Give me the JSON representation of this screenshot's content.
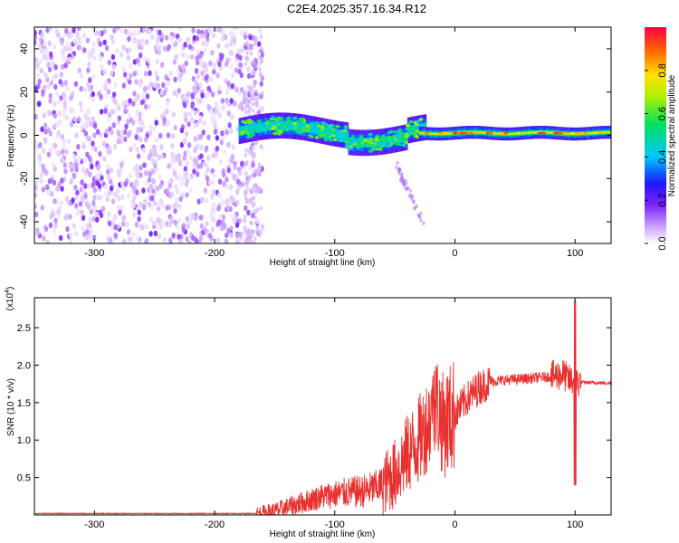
{
  "title": "C2E4.2025.357.16.34.R12",
  "chart_data": [
    {
      "type": "heatmap",
      "name": "spectrogram",
      "xlabel": "Height of straight line (km)",
      "ylabel": "Frequency (Hz)",
      "xlim": [
        -350,
        130
      ],
      "ylim": [
        -50,
        50
      ],
      "xticks": [
        -300,
        -200,
        -100,
        0,
        100
      ],
      "yticks": [
        -40,
        -20,
        0,
        20,
        40
      ],
      "colorbar": {
        "label": "Normalized spectral amplitude",
        "range": [
          0,
          1
        ],
        "ticks": [
          0.0,
          0.2,
          0.4,
          0.6,
          0.8
        ]
      },
      "regions": [
        {
          "x": [
            -350,
            -160
          ],
          "description": "broadband noise, amplitude 0-0.2"
        },
        {
          "x": [
            -180,
            -30
          ],
          "freq_center": 2,
          "freq_spread": 8,
          "amplitude": [
            0.1,
            0.5
          ]
        },
        {
          "x": [
            -30,
            130
          ],
          "freq_center": 1,
          "freq_spread": 3,
          "amplitude": [
            0.3,
            0.95
          ]
        }
      ]
    },
    {
      "type": "line",
      "name": "snr",
      "xlabel": "Height of straight line (km)",
      "ylabel": "SNR (10 * v/v)",
      "scale_label": "(x10",
      "scale_exp": "4",
      "scale_close": ")",
      "xlim": [
        -350,
        130
      ],
      "ylim": [
        0,
        2.9
      ],
      "xticks": [
        -300,
        -200,
        -100,
        0,
        100
      ],
      "yticks": [
        0.5,
        1.0,
        1.5,
        2.0,
        2.5
      ],
      "series": [
        {
          "name": "SNR",
          "color": "#e8302e",
          "x": [
            -350,
            -200,
            -165,
            -150,
            -130,
            -110,
            -90,
            -75,
            -60,
            -50,
            -40,
            -30,
            -20,
            -15,
            -10,
            0,
            10,
            20,
            30,
            40,
            60,
            80,
            90,
            95,
            100,
            105,
            130
          ],
          "y": [
            0.02,
            0.02,
            0.02,
            0.05,
            0.15,
            0.25,
            0.3,
            0.32,
            0.4,
            0.55,
            0.8,
            1.0,
            1.3,
            1.5,
            1.2,
            1.35,
            1.55,
            1.7,
            1.78,
            1.8,
            1.82,
            1.85,
            1.88,
            1.8,
            1.78,
            1.77,
            1.76
          ]
        }
      ]
    }
  ]
}
